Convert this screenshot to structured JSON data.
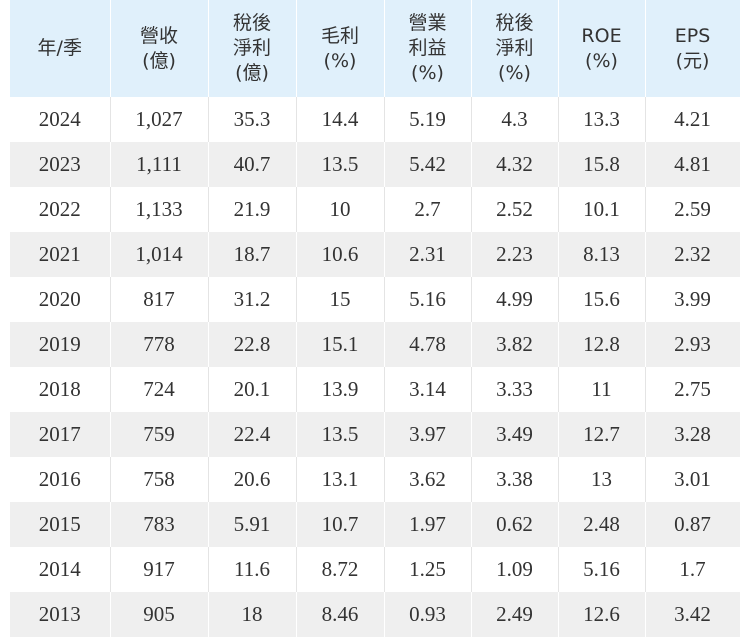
{
  "table": {
    "headers": [
      [
        "年/季"
      ],
      [
        "營收",
        "(億)"
      ],
      [
        "稅後",
        "淨利",
        "(億)"
      ],
      [
        "毛利",
        "(%)"
      ],
      [
        "營業",
        "利益",
        "(%)"
      ],
      [
        "稅後",
        "淨利",
        "(%)"
      ],
      [
        "ROE",
        "(%)"
      ],
      [
        "EPS",
        "(元)"
      ]
    ],
    "rows": [
      [
        "2024",
        "1,027",
        "35.3",
        "14.4",
        "5.19",
        "4.3",
        "13.3",
        "4.21"
      ],
      [
        "2023",
        "1,111",
        "40.7",
        "13.5",
        "5.42",
        "4.32",
        "15.8",
        "4.81"
      ],
      [
        "2022",
        "1,133",
        "21.9",
        "10",
        "2.7",
        "2.52",
        "10.1",
        "2.59"
      ],
      [
        "2021",
        "1,014",
        "18.7",
        "10.6",
        "2.31",
        "2.23",
        "8.13",
        "2.32"
      ],
      [
        "2020",
        "817",
        "31.2",
        "15",
        "5.16",
        "4.99",
        "15.6",
        "3.99"
      ],
      [
        "2019",
        "778",
        "22.8",
        "15.1",
        "4.78",
        "3.82",
        "12.8",
        "2.93"
      ],
      [
        "2018",
        "724",
        "20.1",
        "13.9",
        "3.14",
        "3.33",
        "11",
        "2.75"
      ],
      [
        "2017",
        "759",
        "22.4",
        "13.5",
        "3.97",
        "3.49",
        "12.7",
        "3.28"
      ],
      [
        "2016",
        "758",
        "20.6",
        "13.1",
        "3.62",
        "3.38",
        "13",
        "3.01"
      ],
      [
        "2015",
        "783",
        "5.91",
        "10.7",
        "1.97",
        "0.62",
        "2.48",
        "0.87"
      ],
      [
        "2014",
        "917",
        "11.6",
        "8.72",
        "1.25",
        "1.09",
        "5.16",
        "1.7"
      ],
      [
        "2013",
        "905",
        "18",
        "8.46",
        "0.93",
        "2.49",
        "12.6",
        "3.42"
      ]
    ]
  }
}
